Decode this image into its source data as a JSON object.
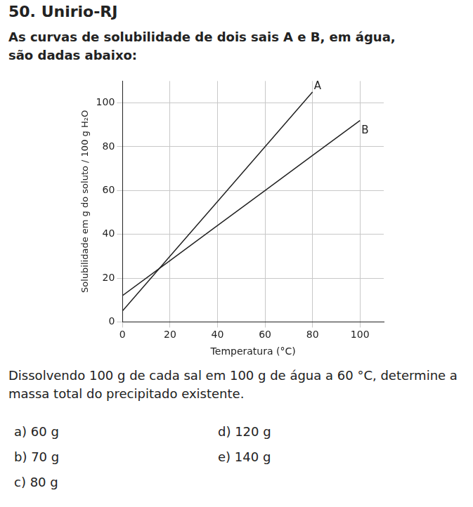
{
  "header": {
    "title": "50. Unirio-RJ"
  },
  "intro": "As curvas de solubilidade de dois sais A e B, em água, são dadas abaixo:",
  "chart_data": {
    "type": "line",
    "x": [
      0,
      20,
      40,
      60,
      80,
      100
    ],
    "series": [
      {
        "name": "A",
        "color": "#222222",
        "values": [
          5,
          30,
          55,
          80,
          105,
          null
        ]
      },
      {
        "name": "B",
        "color": "#222222",
        "values": [
          12,
          28,
          44,
          60,
          76,
          92
        ]
      }
    ],
    "x_label": "Temperatura (°C)",
    "y_label": "Solubilidade em g do soluto / 100 g H₂O",
    "xlim": [
      0,
      110
    ],
    "xticks": [
      0,
      20,
      40,
      60,
      80,
      100
    ],
    "ylim": [
      0,
      110
    ],
    "yticks": [
      0,
      20,
      40,
      60,
      80,
      100
    ],
    "grid": true
  },
  "question": "Dissolvendo 100 g de cada sal em 100 g de água a 60 °C, determine a massa total do precipitado existente.",
  "options": [
    "a) 60 g",
    "b) 70 g",
    "c) 80 g",
    "d) 120 g",
    "e) 140 g"
  ]
}
